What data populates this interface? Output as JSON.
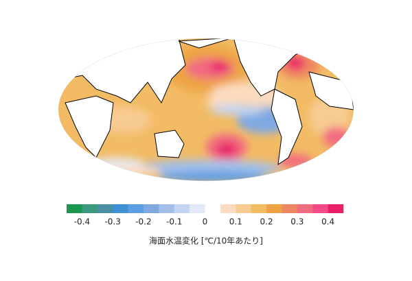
{
  "colorbar": {
    "colors": [
      "#1a9850",
      "#3b9a7d",
      "#4b8fa3",
      "#3f8fd4",
      "#5d9de2",
      "#80a9e2",
      "#a2bfea",
      "#c3d5f2",
      "#e2eaf8",
      "#ffffff",
      "#fcdcc0",
      "#f7cb92",
      "#f2bb64",
      "#eea444",
      "#ef8762",
      "#f16c80",
      "#f24b87",
      "#e8206a"
    ],
    "vlim": [
      -0.45,
      0.45
    ],
    "ticks": [
      -0.4,
      -0.3,
      -0.2,
      -0.1,
      0,
      0.1,
      0.2,
      0.3,
      0.4
    ],
    "label": "海面水温変化 [℃/10年あたり]"
  }
}
